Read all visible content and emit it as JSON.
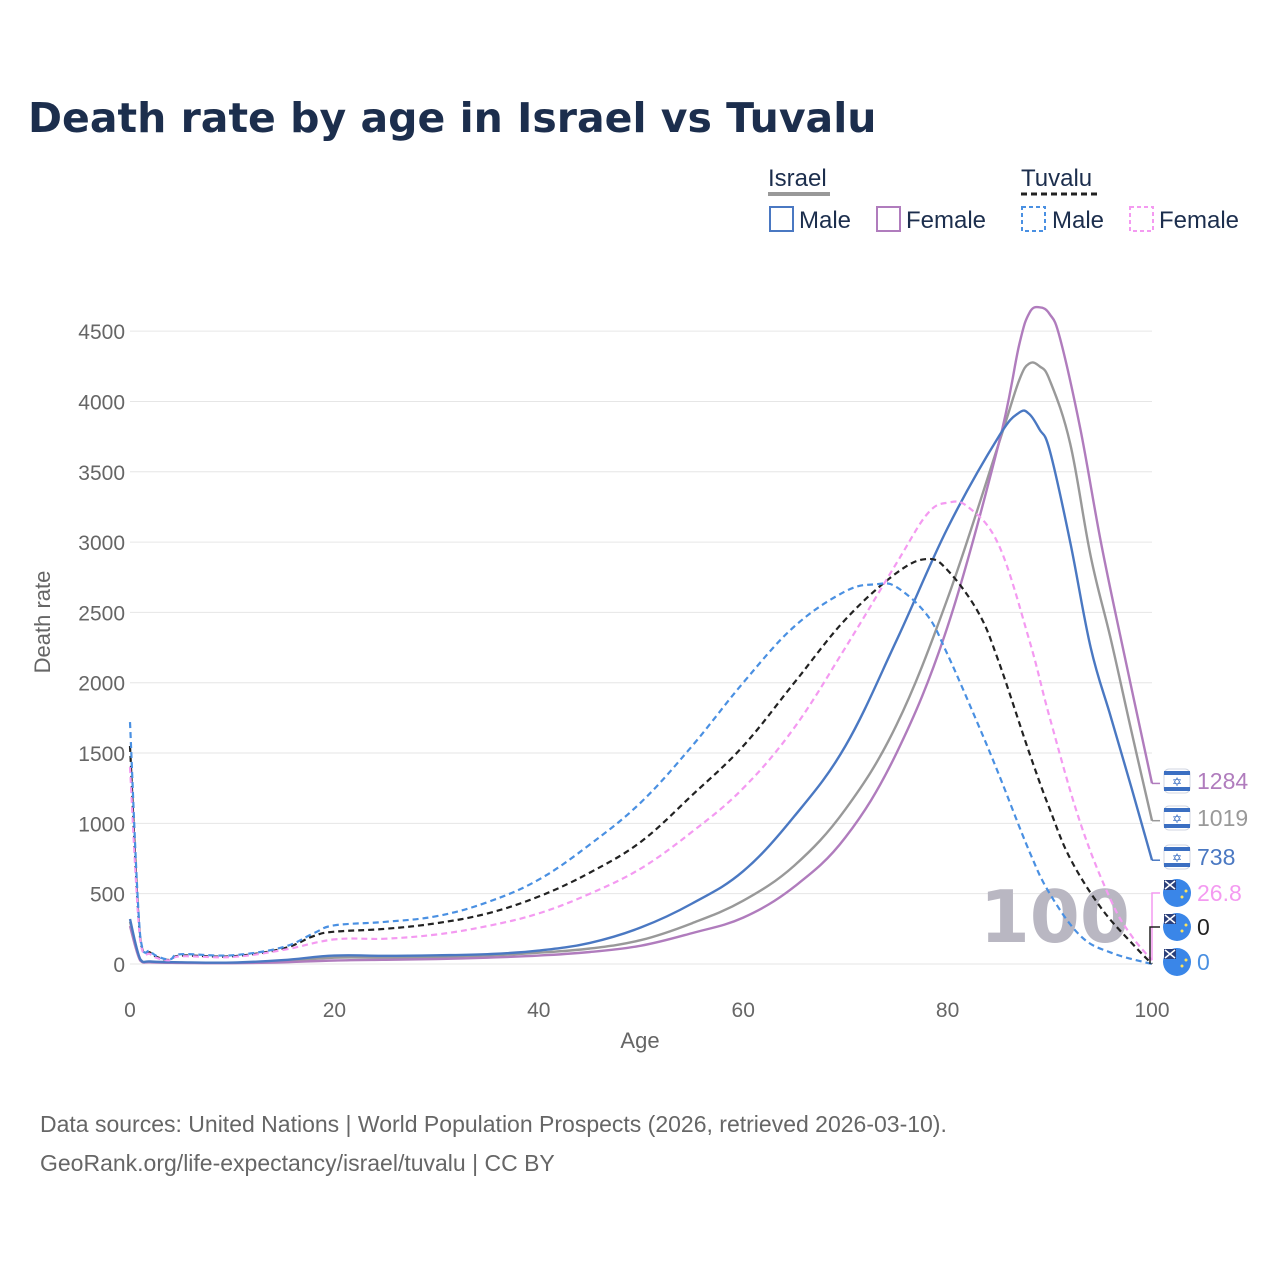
{
  "title": "Death rate by age in Israel vs Tuvalu",
  "colors": {
    "israel_male": "#4a78c2",
    "israel_female": "#b07cbd",
    "israel_total": "#999999",
    "tuvalu_male": "#4a90e2",
    "tuvalu_female": "#f49af1",
    "tuvalu_total": "#222222",
    "title": "#1c2e4d",
    "text": "#666666"
  },
  "legend": {
    "groups": [
      {
        "name": "Israel",
        "items": [
          {
            "label": "Male",
            "color": "#4a78c2",
            "dashed": false
          },
          {
            "label": "Female",
            "color": "#b07cbd",
            "dashed": false
          }
        ]
      },
      {
        "name": "Tuvalu",
        "items": [
          {
            "label": "Male",
            "color": "#4a90e2",
            "dashed": true
          },
          {
            "label": "Female",
            "color": "#f49af1",
            "dashed": true
          }
        ]
      }
    ]
  },
  "watermark": "100",
  "source_line1": "Data sources: United Nations | World Population Prospects (2026, retrieved 2026-03-10).",
  "source_line2": "GeoRank.org/life-expectancy/israel/tuvalu | CC BY",
  "chart_data": {
    "type": "line",
    "title": "Death rate by age in Israel vs Tuvalu",
    "xlabel": "Age",
    "ylabel": "Death rate",
    "xlim": [
      0,
      100
    ],
    "ylim": [
      0,
      4750
    ],
    "xticks": [
      0,
      20,
      40,
      60,
      80,
      100
    ],
    "yticks": [
      0,
      500,
      1000,
      1500,
      2000,
      2500,
      3000,
      3500,
      4000,
      4500
    ],
    "grid": true,
    "series": [
      {
        "name": "Israel Total",
        "country": "Israel",
        "sex": "Total",
        "color": "#999999",
        "dashed": false,
        "end_label": "1019",
        "icon": "israel-flag-icon",
        "points": [
          [
            0,
            300
          ],
          [
            1,
            30
          ],
          [
            2,
            15
          ],
          [
            5,
            10
          ],
          [
            10,
            8
          ],
          [
            15,
            20
          ],
          [
            20,
            45
          ],
          [
            25,
            45
          ],
          [
            30,
            50
          ],
          [
            35,
            60
          ],
          [
            40,
            80
          ],
          [
            45,
            110
          ],
          [
            50,
            170
          ],
          [
            55,
            290
          ],
          [
            60,
            450
          ],
          [
            65,
            700
          ],
          [
            70,
            1100
          ],
          [
            75,
            1700
          ],
          [
            80,
            2600
          ],
          [
            85,
            3700
          ],
          [
            87,
            4150
          ],
          [
            88,
            4270
          ],
          [
            89,
            4250
          ],
          [
            90,
            4150
          ],
          [
            92,
            3700
          ],
          [
            94,
            2900
          ],
          [
            96,
            2300
          ],
          [
            98,
            1650
          ],
          [
            100,
            1019
          ]
        ]
      },
      {
        "name": "Israel Female",
        "country": "Israel",
        "sex": "Female",
        "color": "#b07cbd",
        "dashed": false,
        "end_label": "1284",
        "icon": "israel-flag-icon",
        "points": [
          [
            0,
            270
          ],
          [
            1,
            25
          ],
          [
            2,
            12
          ],
          [
            5,
            8
          ],
          [
            10,
            6
          ],
          [
            15,
            12
          ],
          [
            20,
            25
          ],
          [
            25,
            30
          ],
          [
            30,
            35
          ],
          [
            35,
            45
          ],
          [
            40,
            60
          ],
          [
            45,
            85
          ],
          [
            50,
            130
          ],
          [
            55,
            220
          ],
          [
            60,
            330
          ],
          [
            65,
            550
          ],
          [
            70,
            900
          ],
          [
            75,
            1500
          ],
          [
            80,
            2400
          ],
          [
            85,
            3700
          ],
          [
            87,
            4400
          ],
          [
            88,
            4630
          ],
          [
            89,
            4670
          ],
          [
            90,
            4620
          ],
          [
            91,
            4450
          ],
          [
            93,
            3800
          ],
          [
            95,
            3000
          ],
          [
            97,
            2300
          ],
          [
            100,
            1284
          ]
        ]
      },
      {
        "name": "Israel Male",
        "country": "Israel",
        "sex": "Male",
        "color": "#4a78c2",
        "dashed": false,
        "end_label": "738",
        "icon": "israel-flag-icon",
        "points": [
          [
            0,
            320
          ],
          [
            1,
            35
          ],
          [
            2,
            18
          ],
          [
            5,
            12
          ],
          [
            10,
            10
          ],
          [
            15,
            28
          ],
          [
            20,
            60
          ],
          [
            25,
            58
          ],
          [
            30,
            62
          ],
          [
            35,
            70
          ],
          [
            40,
            95
          ],
          [
            45,
            150
          ],
          [
            50,
            260
          ],
          [
            55,
            430
          ],
          [
            60,
            660
          ],
          [
            65,
            1050
          ],
          [
            70,
            1550
          ],
          [
            75,
            2300
          ],
          [
            80,
            3100
          ],
          [
            85,
            3750
          ],
          [
            87,
            3920
          ],
          [
            88,
            3910
          ],
          [
            89,
            3800
          ],
          [
            90,
            3650
          ],
          [
            92,
            3000
          ],
          [
            94,
            2250
          ],
          [
            96,
            1750
          ],
          [
            98,
            1250
          ],
          [
            100,
            738
          ]
        ]
      },
      {
        "name": "Tuvalu Total",
        "country": "Tuvalu",
        "sex": "Total",
        "color": "#222222",
        "dashed": true,
        "end_label": "0",
        "icon": "tuvalu-flag-icon",
        "points": [
          [
            0,
            1550
          ],
          [
            1,
            180
          ],
          [
            2,
            80
          ],
          [
            3,
            40
          ],
          [
            4,
            30
          ],
          [
            5,
            60
          ],
          [
            10,
            55
          ],
          [
            15,
            110
          ],
          [
            18,
            200
          ],
          [
            20,
            230
          ],
          [
            25,
            250
          ],
          [
            30,
            290
          ],
          [
            35,
            360
          ],
          [
            40,
            480
          ],
          [
            45,
            650
          ],
          [
            50,
            870
          ],
          [
            55,
            1200
          ],
          [
            60,
            1550
          ],
          [
            65,
            2000
          ],
          [
            70,
            2450
          ],
          [
            75,
            2780
          ],
          [
            78,
            2880
          ],
          [
            80,
            2800
          ],
          [
            83,
            2500
          ],
          [
            85,
            2150
          ],
          [
            88,
            1500
          ],
          [
            90,
            1100
          ],
          [
            92,
            750
          ],
          [
            95,
            400
          ],
          [
            98,
            150
          ],
          [
            100,
            0
          ]
        ]
      },
      {
        "name": "Tuvalu Female",
        "country": "Tuvalu",
        "sex": "Female",
        "color": "#f49af1",
        "dashed": true,
        "end_label": "26.8",
        "icon": "tuvalu-flag-icon",
        "points": [
          [
            0,
            1400
          ],
          [
            1,
            170
          ],
          [
            2,
            70
          ],
          [
            3,
            35
          ],
          [
            4,
            28
          ],
          [
            5,
            55
          ],
          [
            10,
            50
          ],
          [
            15,
            100
          ],
          [
            20,
            175
          ],
          [
            25,
            180
          ],
          [
            30,
            210
          ],
          [
            35,
            270
          ],
          [
            40,
            360
          ],
          [
            45,
            500
          ],
          [
            50,
            680
          ],
          [
            55,
            940
          ],
          [
            60,
            1250
          ],
          [
            65,
            1680
          ],
          [
            70,
            2250
          ],
          [
            75,
            2850
          ],
          [
            78,
            3200
          ],
          [
            80,
            3280
          ],
          [
            82,
            3250
          ],
          [
            85,
            2980
          ],
          [
            88,
            2300
          ],
          [
            90,
            1750
          ],
          [
            93,
            1000
          ],
          [
            96,
            450
          ],
          [
            98,
            200
          ],
          [
            100,
            27
          ]
        ]
      },
      {
        "name": "Tuvalu Male",
        "country": "Tuvalu",
        "sex": "Male",
        "color": "#4a90e2",
        "dashed": true,
        "end_label": "0",
        "icon": "tuvalu-flag-icon",
        "points": [
          [
            0,
            1720
          ],
          [
            1,
            200
          ],
          [
            2,
            90
          ],
          [
            3,
            45
          ],
          [
            4,
            35
          ],
          [
            5,
            70
          ],
          [
            10,
            62
          ],
          [
            15,
            120
          ],
          [
            18,
            220
          ],
          [
            20,
            275
          ],
          [
            25,
            300
          ],
          [
            30,
            340
          ],
          [
            35,
            440
          ],
          [
            40,
            600
          ],
          [
            45,
            850
          ],
          [
            50,
            1150
          ],
          [
            55,
            1550
          ],
          [
            60,
            2000
          ],
          [
            65,
            2400
          ],
          [
            70,
            2650
          ],
          [
            73,
            2700
          ],
          [
            75,
            2680
          ],
          [
            78,
            2480
          ],
          [
            80,
            2200
          ],
          [
            83,
            1700
          ],
          [
            85,
            1350
          ],
          [
            88,
            800
          ],
          [
            90,
            500
          ],
          [
            93,
            200
          ],
          [
            96,
            80
          ],
          [
            100,
            0
          ]
        ]
      }
    ]
  }
}
